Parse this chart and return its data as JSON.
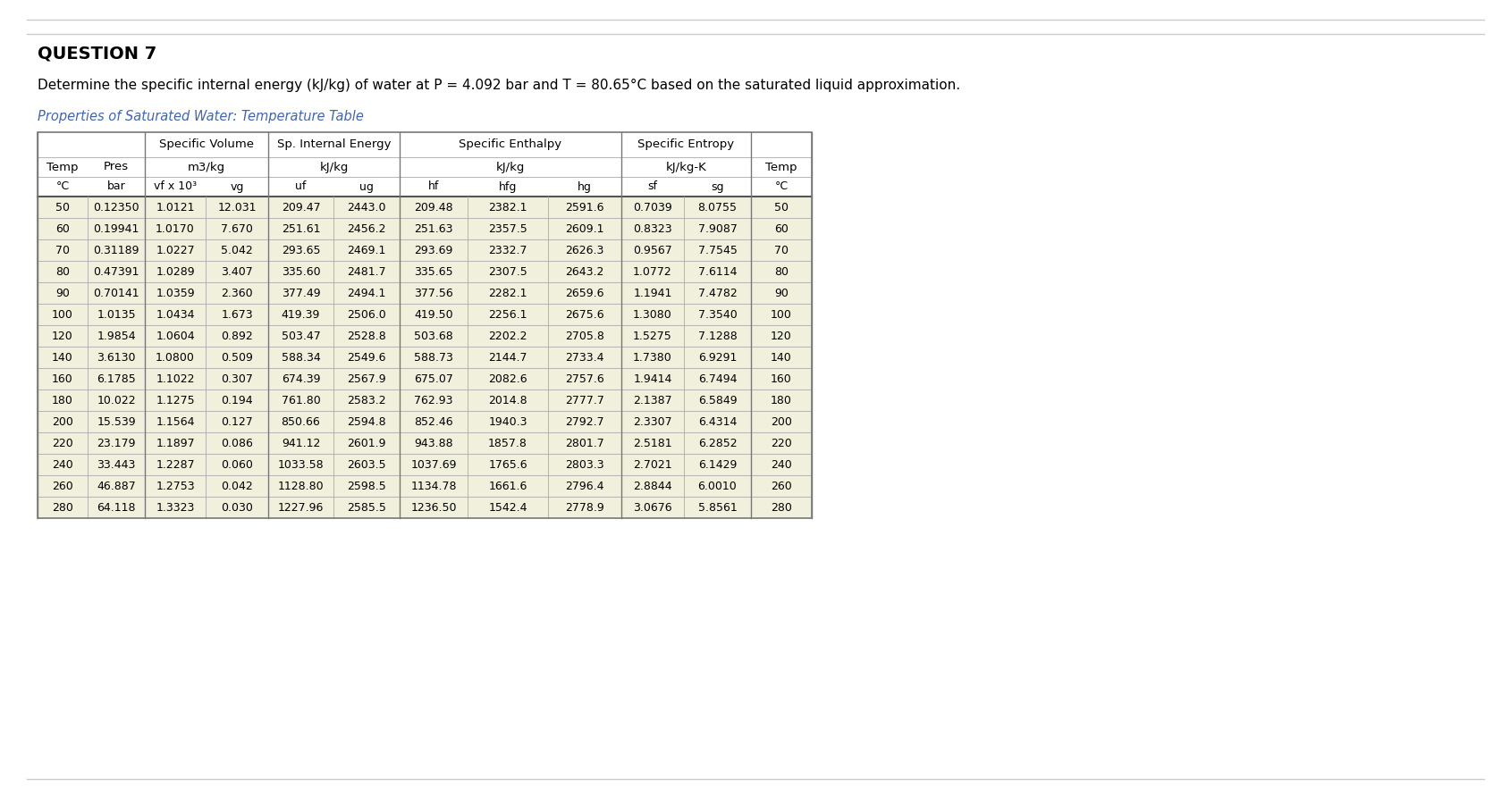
{
  "title": "QUESTION 7",
  "description": "Determine the specific internal energy (kJ/kg) of water at P = 4.092 bar and T = 80.65°C based on the saturated liquid approximation.",
  "table_title": "Properties of Saturated Water: Temperature Table",
  "col_names_row3": [
    "°C",
    "bar",
    "vf x 10³",
    "vg",
    "uf",
    "ug",
    "hf",
    "hfg",
    "hg",
    "sf",
    "sg",
    "°C"
  ],
  "data_strings": [
    [
      "50",
      "0.12350",
      "1.0121",
      "12.031",
      "209.47",
      "2443.0",
      "209.48",
      "2382.1",
      "2591.6",
      "0.7039",
      "8.0755",
      "50"
    ],
    [
      "60",
      "0.19941",
      "1.0170",
      "7.670",
      "251.61",
      "2456.2",
      "251.63",
      "2357.5",
      "2609.1",
      "0.8323",
      "7.9087",
      "60"
    ],
    [
      "70",
      "0.31189",
      "1.0227",
      "5.042",
      "293.65",
      "2469.1",
      "293.69",
      "2332.7",
      "2626.3",
      "0.9567",
      "7.7545",
      "70"
    ],
    [
      "80",
      "0.47391",
      "1.0289",
      "3.407",
      "335.60",
      "2481.7",
      "335.65",
      "2307.5",
      "2643.2",
      "1.0772",
      "7.6114",
      "80"
    ],
    [
      "90",
      "0.70141",
      "1.0359",
      "2.360",
      "377.49",
      "2494.1",
      "377.56",
      "2282.1",
      "2659.6",
      "1.1941",
      "7.4782",
      "90"
    ],
    [
      "100",
      "1.0135",
      "1.0434",
      "1.673",
      "419.39",
      "2506.0",
      "419.50",
      "2256.1",
      "2675.6",
      "1.3080",
      "7.3540",
      "100"
    ],
    [
      "120",
      "1.9854",
      "1.0604",
      "0.892",
      "503.47",
      "2528.8",
      "503.68",
      "2202.2",
      "2705.8",
      "1.5275",
      "7.1288",
      "120"
    ],
    [
      "140",
      "3.6130",
      "1.0800",
      "0.509",
      "588.34",
      "2549.6",
      "588.73",
      "2144.7",
      "2733.4",
      "1.7380",
      "6.9291",
      "140"
    ],
    [
      "160",
      "6.1785",
      "1.1022",
      "0.307",
      "674.39",
      "2567.9",
      "675.07",
      "2082.6",
      "2757.6",
      "1.9414",
      "6.7494",
      "160"
    ],
    [
      "180",
      "10.022",
      "1.1275",
      "0.194",
      "761.80",
      "2583.2",
      "762.93",
      "2014.8",
      "2777.7",
      "2.1387",
      "6.5849",
      "180"
    ],
    [
      "200",
      "15.539",
      "1.1564",
      "0.127",
      "850.66",
      "2594.8",
      "852.46",
      "1940.3",
      "2792.7",
      "2.3307",
      "6.4314",
      "200"
    ],
    [
      "220",
      "23.179",
      "1.1897",
      "0.086",
      "941.12",
      "2601.9",
      "943.88",
      "1857.8",
      "2801.7",
      "2.5181",
      "6.2852",
      "220"
    ],
    [
      "240",
      "33.443",
      "1.2287",
      "0.060",
      "1033.58",
      "2603.5",
      "1037.69",
      "1765.6",
      "2803.3",
      "2.7021",
      "6.1429",
      "240"
    ],
    [
      "260",
      "46.887",
      "1.2753",
      "0.042",
      "1128.80",
      "2598.5",
      "1134.78",
      "1661.6",
      "2796.4",
      "2.8844",
      "6.0010",
      "260"
    ],
    [
      "280",
      "64.118",
      "1.3323",
      "0.030",
      "1227.96",
      "2585.5",
      "1236.50",
      "1542.4",
      "2778.9",
      "3.0676",
      "5.8561",
      "280"
    ]
  ],
  "row_bg": "#f0f0dc",
  "border_color": "#888888",
  "title_color": "#000000",
  "table_title_color": "#4466aa",
  "header_color": "#000000",
  "data_color": "#000000"
}
